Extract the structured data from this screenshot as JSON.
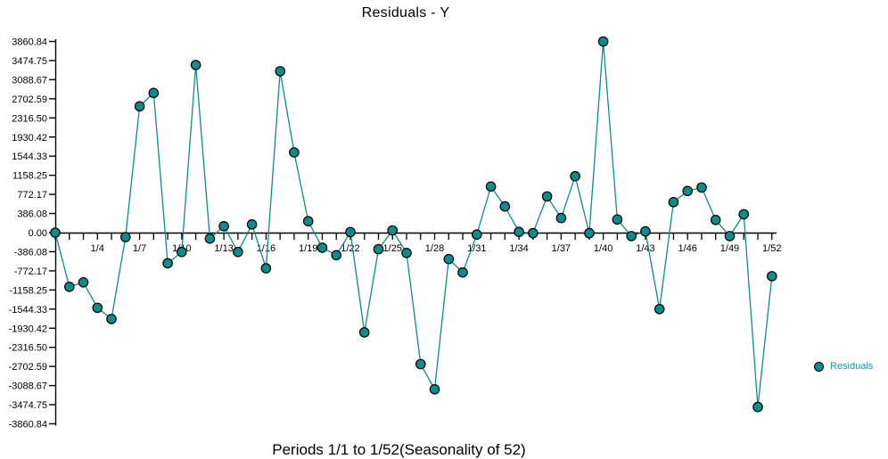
{
  "chart_data": {
    "type": "line",
    "title": "Residuals - Y",
    "xlabel": "Periods 1/1 to 1/52(Seasonality of 52)",
    "ylabel": "",
    "legend": [
      "Residuals"
    ],
    "legend_position": "right",
    "grid": false,
    "ylim": [
      -3860.84,
      3860.84
    ],
    "y_tick_labels": [
      "3860.84",
      "3474.75",
      "3088.67",
      "2702.59",
      "2316.50",
      "1930.42",
      "1544.33",
      "1158.25",
      "772.17",
      "386.08",
      "0.00",
      "-386.08",
      "-772.17",
      "-1158.25",
      "-1544.33",
      "-1930.42",
      "-2316.50",
      "-2702.59",
      "-3088.67",
      "-3474.75",
      "-3860.84"
    ],
    "x_tick_labels_shown": [
      "1/4",
      "1/7",
      "1/10",
      "1/13",
      "1/16",
      "1/19",
      "1/22",
      "1/25",
      "1/28",
      "1/31",
      "1/34",
      "1/37",
      "1/40",
      "1/43",
      "1/46",
      "1/49",
      "1/52"
    ],
    "categories": [
      "1/1",
      "1/2",
      "1/3",
      "1/4",
      "1/5",
      "1/6",
      "1/7",
      "1/8",
      "1/9",
      "1/10",
      "1/11",
      "1/12",
      "1/13",
      "1/14",
      "1/15",
      "1/16",
      "1/17",
      "1/18",
      "1/19",
      "1/20",
      "1/21",
      "1/22",
      "1/23",
      "1/24",
      "1/25",
      "1/26",
      "1/27",
      "1/28",
      "1/29",
      "1/30",
      "1/31",
      "1/32",
      "1/33",
      "1/34",
      "1/35",
      "1/36",
      "1/37",
      "1/38",
      "1/39",
      "1/40",
      "1/41",
      "1/42",
      "1/43",
      "1/44",
      "1/45",
      "1/46",
      "1/47",
      "1/48",
      "1/49",
      "1/50",
      "1/51",
      "1/52"
    ],
    "series": [
      {
        "name": "Residuals",
        "values": [
          0,
          -1095,
          -1005,
          -1520,
          -1745,
          -90,
          2550,
          2820,
          -620,
          -390,
          3385,
          -120,
          130,
          -390,
          165,
          -720,
          3260,
          1620,
          230,
          -305,
          -455,
          10,
          -2015,
          -335,
          45,
          -410,
          -2655,
          -3165,
          -535,
          -805,
          -40,
          930,
          530,
          15,
          -10,
          730,
          295,
          1140,
          -10,
          3860,
          265,
          -70,
          25,
          -1545,
          615,
          840,
          910,
          255,
          -70,
          370,
          -3520,
          -880
        ]
      }
    ],
    "colors": {
      "series": "#0e8b8b",
      "marker_fill": "#0e8b8b",
      "marker_stroke": "#000000",
      "axis": "#000000",
      "legend_text": "#1b93a4",
      "title_text": "#000000"
    }
  }
}
